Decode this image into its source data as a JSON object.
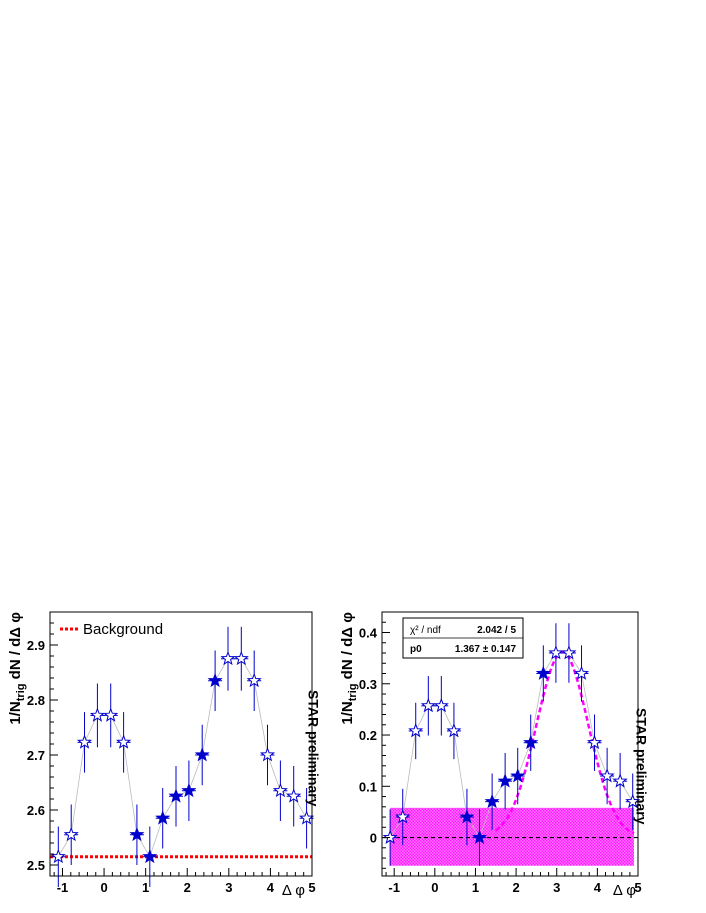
{
  "chart_data": [
    {
      "type": "scatter",
      "xlabel": "Δ φ",
      "ylabel_main": "1/N",
      "ylabel_sub": "trig",
      "ylabel_rest": " dN / dΔ φ",
      "xlim": [
        -1.3,
        5.0
      ],
      "ylim": [
        2.48,
        2.96
      ],
      "xticks": [
        -1,
        0,
        1,
        2,
        3,
        4,
        5
      ],
      "yticks": [
        2.5,
        2.6,
        2.7,
        2.8,
        2.9
      ],
      "ytick_labels": [
        "2.5",
        "2.6",
        "2.7",
        "2.8",
        "2.9"
      ],
      "side_label": "STAR preliminary",
      "legend": {
        "placement": "top-left",
        "entries": [
          "Background"
        ]
      },
      "background_level": 2.515,
      "background_color": "#ff0000",
      "marker_color": "#0000cc",
      "series": [
        {
          "marker": "open-star",
          "x": [
            -1.1,
            -0.79,
            -0.47,
            -0.16,
            0.16,
            0.47
          ],
          "y": [
            2.515,
            2.555,
            2.723,
            2.772,
            2.772,
            2.723
          ],
          "err": [
            0.055,
            0.055,
            0.055,
            0.058,
            0.058,
            0.055
          ]
        },
        {
          "marker": "filled-star",
          "x": [
            0.79,
            1.1,
            1.41,
            1.73,
            2.04,
            2.36,
            2.67
          ],
          "y": [
            2.555,
            2.515,
            2.585,
            2.625,
            2.635,
            2.7,
            2.835
          ],
          "err": [
            0.055,
            0.055,
            0.055,
            0.055,
            0.055,
            0.055,
            0.055
          ]
        },
        {
          "marker": "open-star",
          "x": [
            2.98,
            3.3,
            3.61,
            3.93,
            4.24,
            4.56,
            4.87
          ],
          "y": [
            2.875,
            2.875,
            2.835,
            2.7,
            2.635,
            2.625,
            2.585
          ],
          "err": [
            0.058,
            0.058,
            0.055,
            0.055,
            0.055,
            0.055,
            0.055
          ]
        }
      ]
    },
    {
      "type": "scatter",
      "xlabel": "Δ φ",
      "ylabel_main": "1/N",
      "ylabel_sub": "trig",
      "ylabel_rest": " dN / dΔ φ",
      "xlim": [
        -1.3,
        5.0
      ],
      "ylim": [
        -0.075,
        0.44
      ],
      "xticks": [
        -1,
        0,
        1,
        2,
        3,
        4,
        5
      ],
      "yticks": [
        0,
        0.1,
        0.2,
        0.3,
        0.4
      ],
      "ytick_labels": [
        "0",
        "0.1",
        "0.2",
        "0.3",
        "0.4"
      ],
      "side_label": "STAR preliminary",
      "stats_box": {
        "rows": [
          {
            "label": "χ² / ndf",
            "value": "2.042 / 5"
          },
          {
            "label": "p0",
            "value": "1.367 ± 0.147"
          }
        ]
      },
      "band": {
        "x": [
          -1.1,
          4.9
        ],
        "y": [
          -0.055,
          0.058
        ],
        "color": "#ff00ff"
      },
      "fit": {
        "color": "#ff00ff",
        "amplitude": 0.362,
        "mean": 3.14,
        "sigma": 0.64,
        "x": [
          1.5,
          4.9
        ]
      },
      "zero_line": 0,
      "marker_color": "#0000cc",
      "series": [
        {
          "marker": "open-star",
          "x": [
            -1.1,
            -0.79,
            -0.47,
            -0.16,
            0.16,
            0.47
          ],
          "y": [
            0.0,
            0.04,
            0.208,
            0.257,
            0.257,
            0.208
          ],
          "err": [
            0.055,
            0.055,
            0.055,
            0.058,
            0.058,
            0.055
          ]
        },
        {
          "marker": "filled-star",
          "x": [
            0.79,
            1.1,
            1.41,
            1.73,
            2.04,
            2.36,
            2.67
          ],
          "y": [
            0.04,
            0.0,
            0.07,
            0.11,
            0.12,
            0.185,
            0.32
          ],
          "err": [
            0.055,
            0.055,
            0.055,
            0.055,
            0.055,
            0.055,
            0.055
          ]
        },
        {
          "marker": "open-star",
          "x": [
            2.98,
            3.3,
            3.61,
            3.93,
            4.24,
            4.56,
            4.87
          ],
          "y": [
            0.36,
            0.36,
            0.32,
            0.185,
            0.12,
            0.11,
            0.07
          ],
          "err": [
            0.058,
            0.058,
            0.055,
            0.055,
            0.055,
            0.055,
            0.055
          ]
        }
      ]
    }
  ]
}
